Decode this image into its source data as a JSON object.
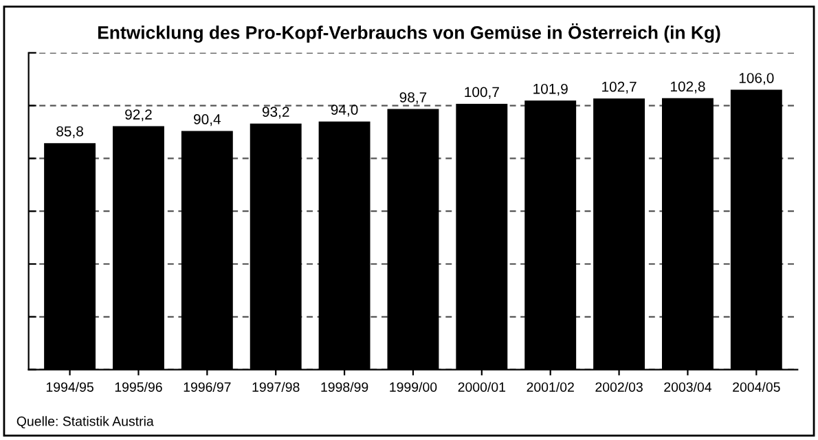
{
  "chart_data": {
    "type": "bar",
    "title": "Entwicklung des Pro-Kopf-Verbrauchs von Gemüse in Österreich (in Kg)",
    "categories": [
      "1994/95",
      "1995/96",
      "1996/97",
      "1997/98",
      "1998/99",
      "1999/00",
      "2000/01",
      "2001/02",
      "2002/03",
      "2003/04",
      "2004/05"
    ],
    "values": [
      85.8,
      92.2,
      90.4,
      93.2,
      94.0,
      98.7,
      100.7,
      101.9,
      102.7,
      102.8,
      106.0
    ],
    "value_labels": [
      "85,8",
      "92,2",
      "90,4",
      "93,2",
      "94,0",
      "98,7",
      "100,7",
      "101,9",
      "102,7",
      "102,8",
      "106,0"
    ],
    "color": "#000000",
    "ylim": [
      0,
      120
    ],
    "yticks": [
      {
        "value": 0,
        "label": null
      },
      {
        "value": 20,
        "label": null
      },
      {
        "value": 40,
        "label": null
      },
      {
        "value": 60,
        "label": null
      },
      {
        "value": 80,
        "label": null
      },
      {
        "value": 100,
        "label": null
      },
      {
        "value": 120,
        "label": null
      }
    ],
    "tick_labels": "x",
    "grid": "y",
    "line_style": "dashed",
    "annotations": [
      "Quelle: Statistik Austria"
    ]
  }
}
